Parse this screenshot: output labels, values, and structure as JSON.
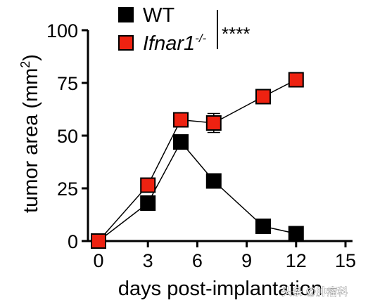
{
  "chart_data": {
    "type": "line",
    "xlabel": "days post-implantation",
    "ylabel": "tumor area (mm²)",
    "ylabel_main": "tumor area (mm",
    "ylabel_sup": "2",
    "ylabel_close": ")",
    "xlim": [
      0,
      15
    ],
    "ylim": [
      0,
      100
    ],
    "x_ticks": [
      0,
      3,
      6,
      9,
      12,
      15
    ],
    "y_ticks": [
      0,
      25,
      50,
      75,
      100
    ],
    "grid": false,
    "legend_position": "top",
    "series": [
      {
        "name": "WT",
        "color": "#000000",
        "marker": "square",
        "x": [
          0,
          3,
          5,
          7,
          10,
          12
        ],
        "y": [
          0,
          18,
          47,
          28.5,
          7,
          3.5
        ],
        "err": [
          0,
          0,
          0,
          0,
          0,
          0
        ]
      },
      {
        "name": "Ifnar1",
        "name_sup": "-/-",
        "color": "#ee2211",
        "marker": "square",
        "x": [
          0,
          3,
          5,
          7,
          10,
          12
        ],
        "y": [
          0,
          26.5,
          57.5,
          56,
          68.5,
          76.5
        ],
        "err": [
          0,
          0,
          0,
          4.5,
          0,
          0
        ]
      }
    ],
    "significance": "****"
  },
  "watermark": "头条 @肿瘤科"
}
